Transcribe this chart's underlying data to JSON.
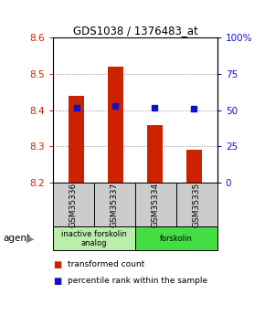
{
  "title": "GDS1038 / 1376483_at",
  "samples": [
    "GSM35336",
    "GSM35337",
    "GSM35334",
    "GSM35335"
  ],
  "bar_values": [
    8.44,
    8.52,
    8.36,
    8.29
  ],
  "percentile_values": [
    52,
    53,
    52,
    51
  ],
  "bar_bottom": 8.2,
  "ylim_left": [
    8.2,
    8.6
  ],
  "ylim_right": [
    0,
    100
  ],
  "yticks_left": [
    8.2,
    8.3,
    8.4,
    8.5,
    8.6
  ],
  "yticks_right": [
    0,
    25,
    50,
    75,
    100
  ],
  "ytick_labels_right": [
    "0",
    "25",
    "50",
    "75",
    "100%"
  ],
  "bar_color": "#cc2200",
  "percentile_color": "#1111cc",
  "group1_color": "#bbeeaa",
  "group2_color": "#44dd44",
  "agent_groups": [
    {
      "label": "inactive forskolin\nanalog",
      "start": 0,
      "end": 2
    },
    {
      "label": "forskolin",
      "start": 2,
      "end": 4
    }
  ],
  "legend_items": [
    {
      "label": "transformed count",
      "color": "#cc2200"
    },
    {
      "label": "percentile rank within the sample",
      "color": "#1111cc"
    }
  ],
  "agent_label": "agent",
  "grid_color": "#888888",
  "sample_box_color": "#cccccc",
  "bar_width": 0.4
}
